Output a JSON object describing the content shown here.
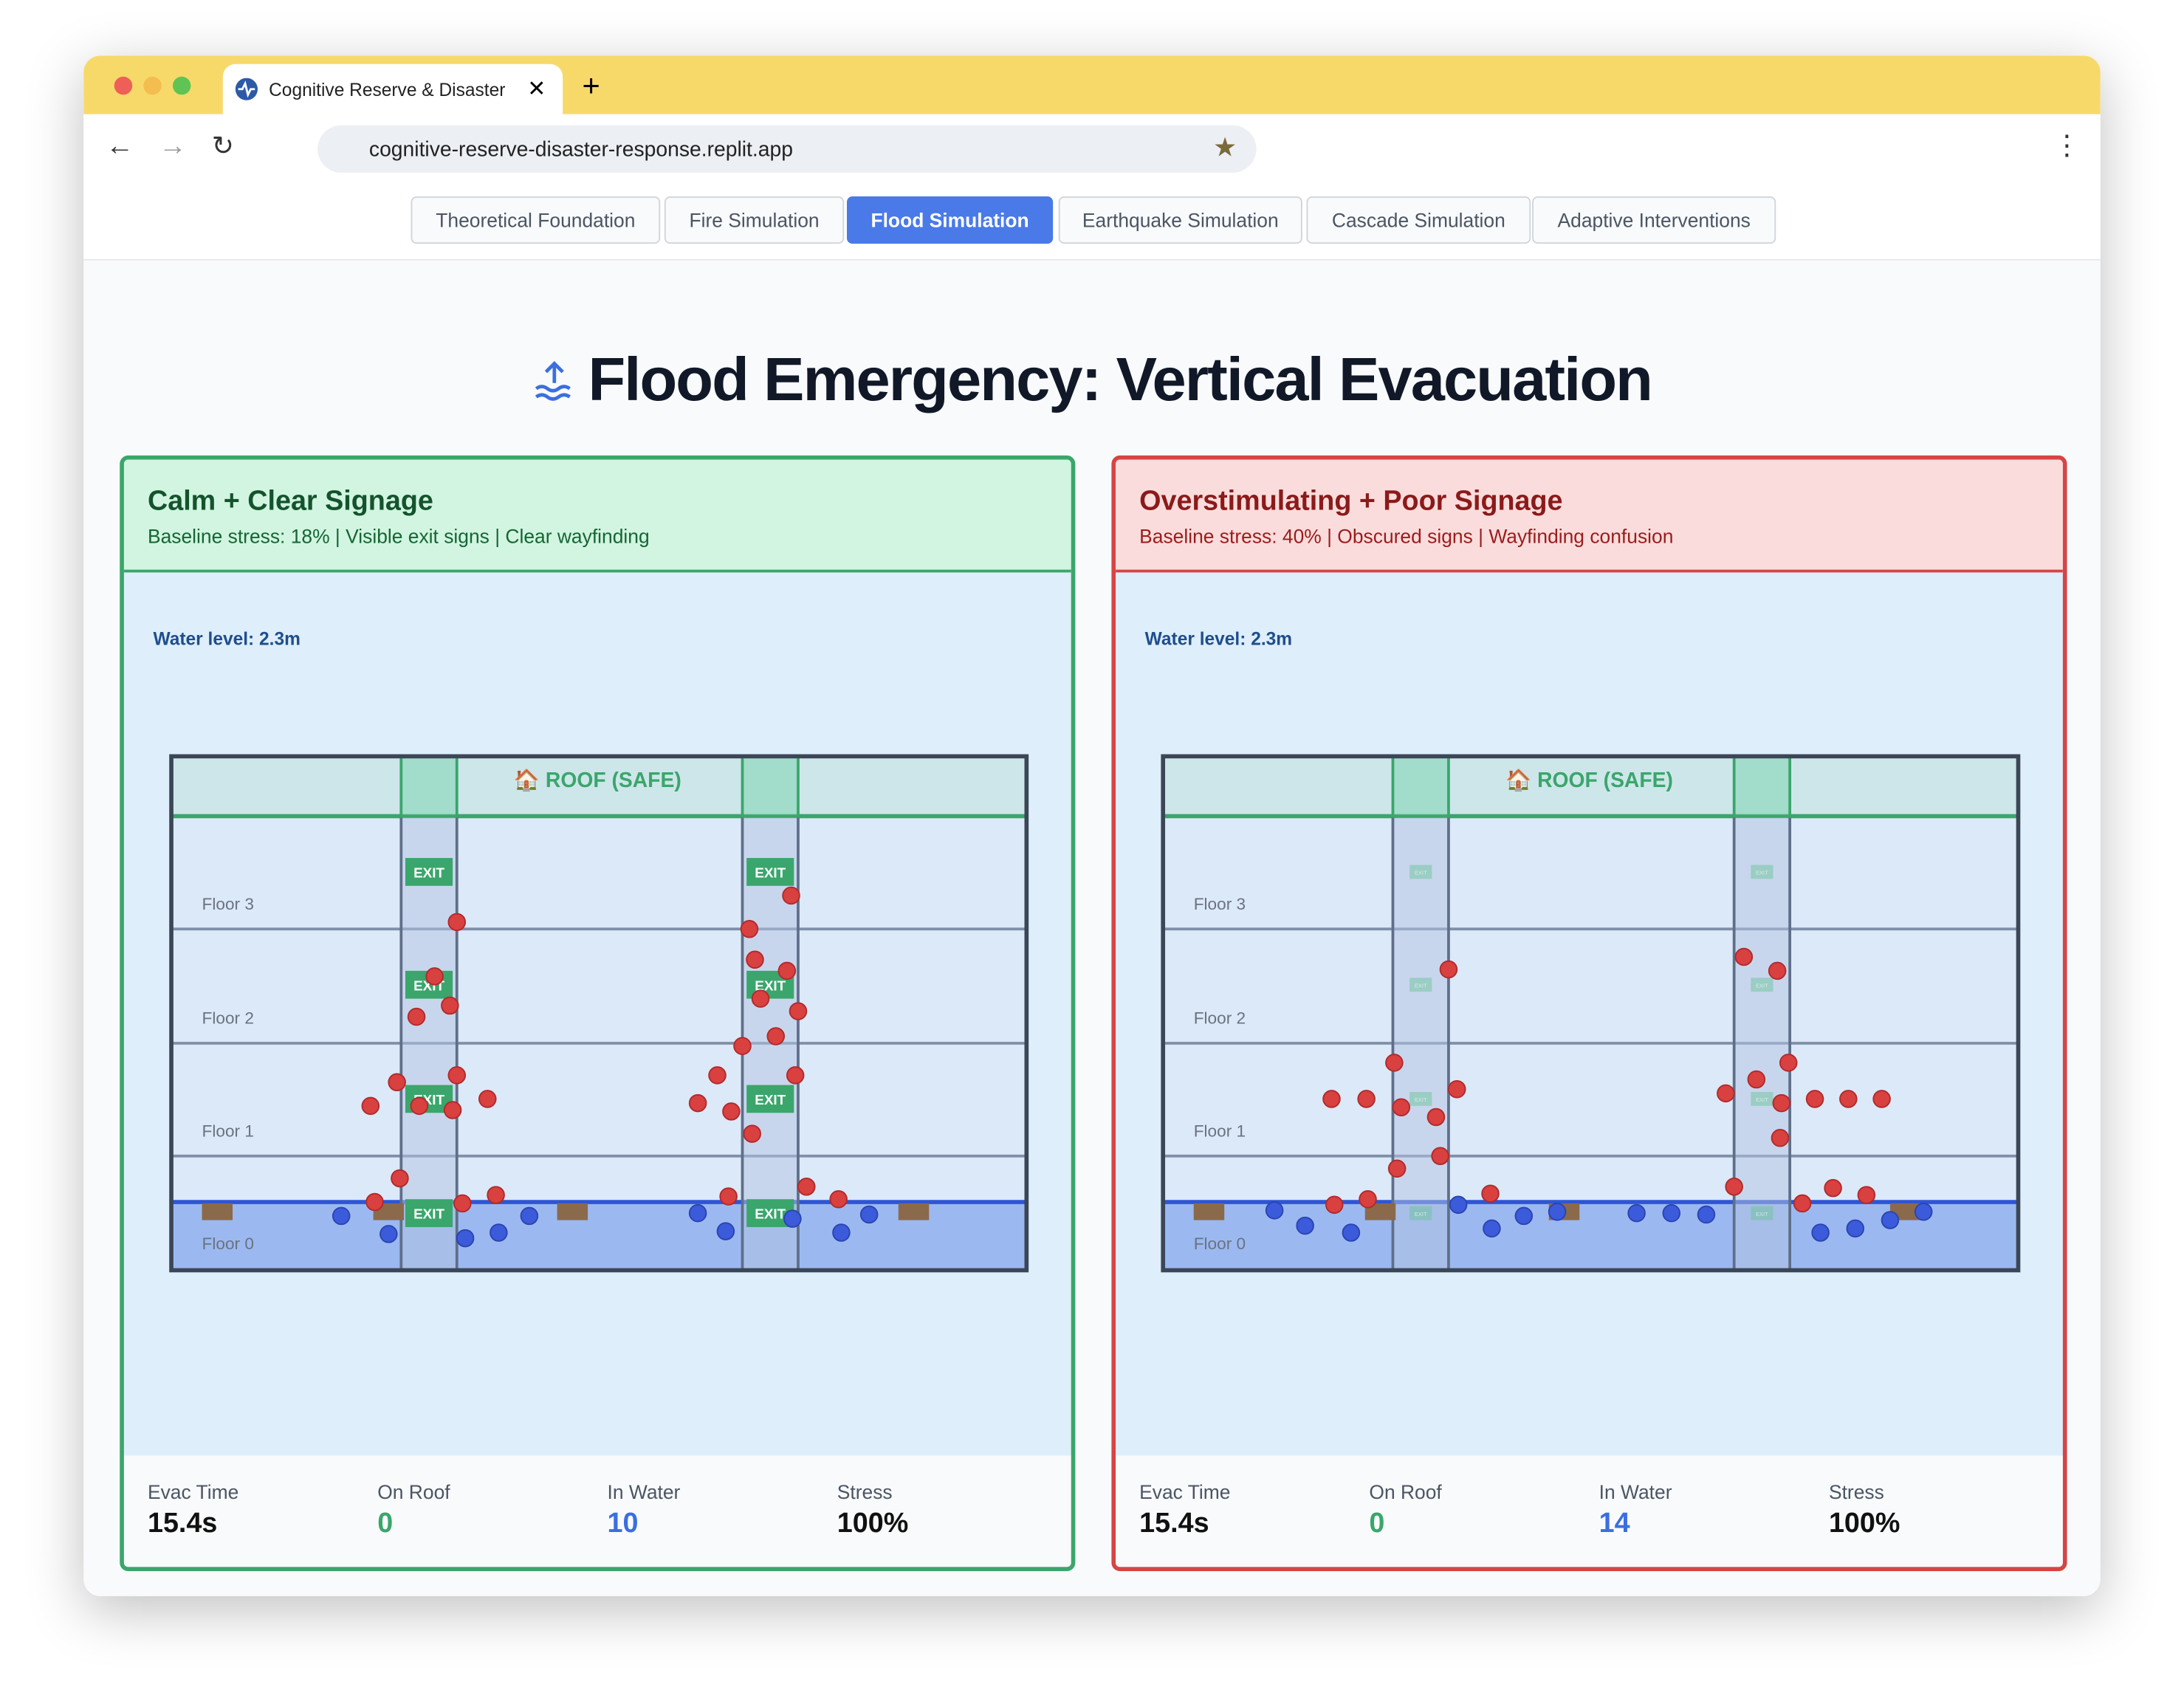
{
  "browser": {
    "tab_title": "Cognitive Reserve & Disaster",
    "url": "cognitive-reserve-disaster-response.replit.app"
  },
  "nav": {
    "tabs": [
      "Theoretical Foundation",
      "Fire Simulation",
      "Flood Simulation",
      "Earthquake Simulation",
      "Cascade Simulation",
      "Adaptive Interventions"
    ],
    "active": "Flood Simulation"
  },
  "heading": "Flood Emergency: Vertical Evacuation",
  "panels": [
    {
      "title": "Calm + Clear Signage",
      "subtitle": "Baseline stress: 18% | Visible exit signs | Clear wayfinding",
      "water_level": "Water level: 2.3m",
      "roof": "🏠 ROOF (SAFE)",
      "floors": [
        "Floor 3",
        "Floor 2",
        "Floor 1",
        "Floor 0"
      ],
      "exit": "EXIT",
      "stats": [
        {
          "label": "Evac Time",
          "value": "15.4s"
        },
        {
          "label": "On Roof",
          "value": "0"
        },
        {
          "label": "In Water",
          "value": "10"
        },
        {
          "label": "Stress",
          "value": "100%"
        }
      ]
    },
    {
      "title": "Overstimulating + Poor Signage",
      "subtitle": "Baseline stress: 40% | Obscured signs | Wayfinding confusion",
      "water_level": "Water level: 2.3m",
      "roof": "🏠 ROOF (SAFE)",
      "floors": [
        "Floor 3",
        "Floor 2",
        "Floor 1",
        "Floor 0"
      ],
      "exit": "EXIT",
      "stats": [
        {
          "label": "Evac Time",
          "value": "15.4s"
        },
        {
          "label": "On Roof",
          "value": "0"
        },
        {
          "label": "In Water",
          "value": "14"
        },
        {
          "label": "Stress",
          "value": "100%"
        }
      ]
    }
  ]
}
